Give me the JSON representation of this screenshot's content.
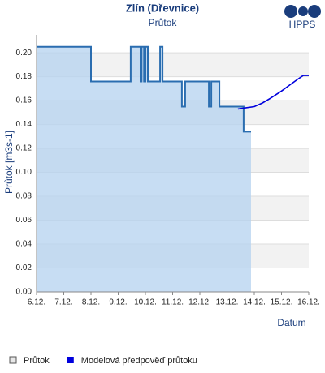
{
  "chart_data": {
    "type": "line",
    "title": "Zlín (Dřevnice)",
    "subtitle": "Průtok",
    "logo": "HPPS",
    "y_label": "Průtok [m3s-1]",
    "x_label": "Datum",
    "xlim": [
      6,
      16
    ],
    "xticks": [
      {
        "value": 6,
        "label": "6.12."
      },
      {
        "value": 7,
        "label": "7.12."
      },
      {
        "value": 8,
        "label": "8.12."
      },
      {
        "value": 9,
        "label": "9.12."
      },
      {
        "value": 10,
        "label": "10.12."
      },
      {
        "value": 11,
        "label": "11.12."
      },
      {
        "value": 12,
        "label": "12.12."
      },
      {
        "value": 13,
        "label": "13.12."
      },
      {
        "value": 14,
        "label": "14.12."
      },
      {
        "value": 15,
        "label": "15.12."
      },
      {
        "value": 16,
        "label": "16.12."
      }
    ],
    "ylim": [
      0,
      0.215
    ],
    "yticks": [
      {
        "value": 0,
        "label": "0.00"
      },
      {
        "value": 0.02,
        "label": "0.02"
      },
      {
        "value": 0.04,
        "label": "0.04"
      },
      {
        "value": 0.06,
        "label": "0.06"
      },
      {
        "value": 0.08,
        "label": "0.08"
      },
      {
        "value": 0.1,
        "label": "0.10"
      },
      {
        "value": 0.12,
        "label": "0.12"
      },
      {
        "value": 0.14,
        "label": "0.14"
      },
      {
        "value": 0.16,
        "label": "0.16"
      },
      {
        "value": 0.18,
        "label": "0.18"
      },
      {
        "value": 0.2,
        "label": "0.20"
      }
    ],
    "grid": true,
    "legend": "bottom",
    "series": [
      {
        "name": "Průtok",
        "color": "#2a6db0",
        "fill": "#b4d2ef",
        "area": true,
        "x": [
          6,
          8,
          8,
          9.46,
          9.46,
          9.82,
          9.82,
          9.86,
          9.86,
          9.95,
          9.95,
          10.0,
          10.0,
          10.09,
          10.09,
          10.54,
          10.54,
          10.63,
          10.63,
          11.34,
          11.34,
          11.46,
          11.46,
          12.33,
          12.33,
          12.42,
          12.42,
          12.72,
          12.72,
          13.61,
          13.61,
          13.88
        ],
        "values": [
          0.205,
          0.205,
          0.176,
          0.176,
          0.205,
          0.205,
          0.176,
          0.176,
          0.205,
          0.205,
          0.176,
          0.176,
          0.205,
          0.205,
          0.176,
          0.176,
          0.205,
          0.205,
          0.176,
          0.176,
          0.155,
          0.155,
          0.176,
          0.176,
          0.155,
          0.155,
          0.176,
          0.176,
          0.155,
          0.155,
          0.134,
          0.134
        ]
      },
      {
        "name": "Modelová předpověď průtoku",
        "color": "#0000dd",
        "area": false,
        "x": [
          13.4,
          13.7,
          14.0,
          14.3,
          14.6,
          15.0,
          15.3,
          15.6,
          15.8,
          16.0
        ],
        "values": [
          0.153,
          0.154,
          0.155,
          0.158,
          0.162,
          0.168,
          0.173,
          0.178,
          0.181,
          0.181
        ]
      }
    ]
  }
}
